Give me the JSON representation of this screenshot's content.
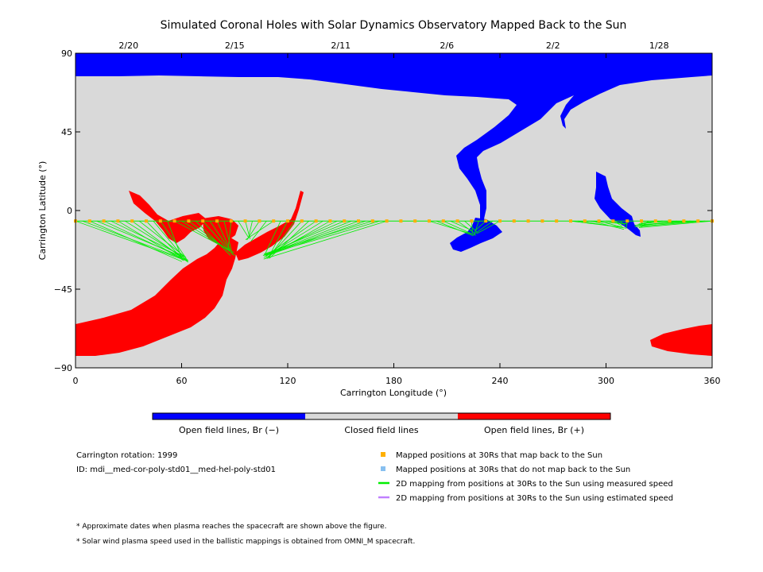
{
  "chart_data": {
    "type": "map",
    "title": "Simulated Coronal Holes with Solar Dynamics Observatory Mapped Back to the Sun",
    "xlabel": "Carrington Longitude (°)",
    "ylabel": "Carrington Latitude (°)",
    "xlim": [
      0,
      360
    ],
    "ylim": [
      -90,
      90
    ],
    "x_ticks": [
      "0",
      "60",
      "120",
      "180",
      "240",
      "300",
      "360"
    ],
    "y_ticks": [
      "90",
      "45",
      "0",
      "−45",
      "−90"
    ],
    "top_dates": [
      {
        "label": "2/20",
        "lon": 30
      },
      {
        "label": "2/15",
        "lon": 90
      },
      {
        "label": "2/11",
        "lon": 150
      },
      {
        "label": "2/6",
        "lon": 210
      },
      {
        "label": "2/2",
        "lon": 270
      },
      {
        "label": "1/28",
        "lon": 330
      }
    ],
    "colors": {
      "background": "#d9d9d9",
      "open_negative": "#0000ff",
      "open_positive": "#ff0000",
      "mapped": "#ffb000",
      "unmapped": "#88c0f0",
      "measured": "#00ee00",
      "estimated": "#c080ff"
    },
    "mapped_positions_lon": [
      0,
      8,
      16,
      24,
      32,
      40,
      48,
      56,
      64,
      72,
      80,
      88,
      96,
      104,
      112,
      120,
      128,
      136,
      144,
      152,
      160,
      168,
      176,
      184,
      192,
      200,
      208,
      216,
      224,
      232,
      240,
      248,
      256,
      264,
      272,
      280,
      288,
      296,
      304,
      312,
      320,
      328,
      336,
      344,
      352,
      360
    ],
    "mapped_positions_lat": -6,
    "footpoint_groups": [
      {
        "lon_range": [
          0,
          52
        ],
        "target": [
          62,
          -28
        ]
      },
      {
        "lon_range": [
          56,
          88
        ],
        "target": [
          88,
          -24
        ]
      },
      {
        "lon_range": [
          92,
          112
        ],
        "target": [
          97,
          -16
        ]
      },
      {
        "lon_range": [
          116,
          176
        ],
        "target": [
          108,
          -26
        ]
      },
      {
        "lon_range": [
          200,
          240
        ],
        "target": [
          226,
          -13
        ]
      },
      {
        "lon_range": [
          280,
          312
        ],
        "target": [
          310,
          -9
        ]
      },
      {
        "lon_range": [
          320,
          360
        ],
        "target": [
          318,
          -8
        ]
      }
    ]
  },
  "colorbar": {
    "labels": [
      "Open field lines, Br (−)",
      "Closed field lines",
      "Open field lines, Br (+)"
    ]
  },
  "info": {
    "rotation": "Carrington rotation: 1999",
    "id": "ID: mdi__med-cor-poly-std01__med-hel-poly-std01"
  },
  "legend": [
    {
      "label": "Mapped positions at 30Rs that map back to the Sun",
      "kind": "square",
      "color": "#ffb000"
    },
    {
      "label": "Mapped positions at 30Rs that do not map back to the Sun",
      "kind": "square",
      "color": "#88c0f0"
    },
    {
      "label": "2D mapping from positions at 30Rs to the Sun using measured speed",
      "kind": "line",
      "color": "#00ee00"
    },
    {
      "label": "2D mapping from positions at 30Rs to the Sun using estimated speed",
      "kind": "line",
      "color": "#c080ff"
    }
  ],
  "notes": [
    "* Approximate dates when plasma reaches the spacecraft are shown above the figure.",
    "* Solar wind plasma speed used in the ballistic mappings is obtained from OMNI_M spacecraft."
  ]
}
